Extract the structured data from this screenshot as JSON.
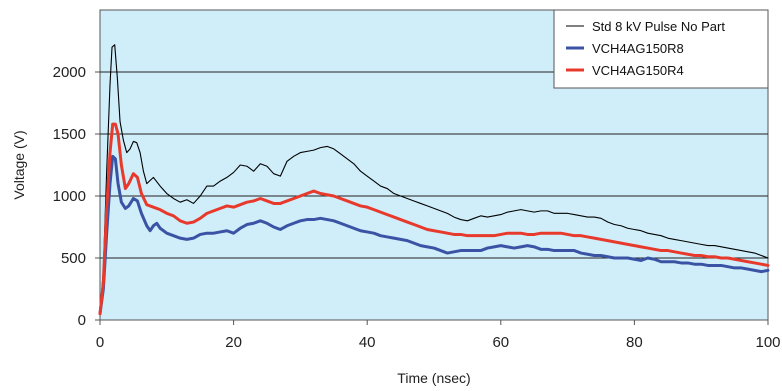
{
  "chart_data": {
    "type": "line",
    "xlabel": "Time (nsec)",
    "ylabel": "Voltage (V)",
    "xlim": [
      0,
      100
    ],
    "ylim": [
      0,
      2500
    ],
    "xticks": [
      0,
      20,
      40,
      60,
      80,
      100
    ],
    "xtick_labels": [
      "0",
      "20",
      "40",
      "60",
      "80",
      "100"
    ],
    "yticks": [
      0,
      500,
      1000,
      1500,
      2000
    ],
    "ytick_labels": [
      "0",
      "500",
      "1000",
      "1500",
      "2000"
    ],
    "grid": "horizontal",
    "plot_background": "#cfeefa",
    "legend_placement": "top-right",
    "series": [
      {
        "name": "Std 8 kV Pulse No Part",
        "color": "#000000",
        "stroke": "thin",
        "points": [
          [
            0,
            50
          ],
          [
            0.5,
            400
          ],
          [
            1,
            1200
          ],
          [
            1.5,
            1900
          ],
          [
            1.8,
            2200
          ],
          [
            2.2,
            2220
          ],
          [
            2.6,
            1950
          ],
          [
            3,
            1600
          ],
          [
            3.5,
            1450
          ],
          [
            4,
            1350
          ],
          [
            4.5,
            1380
          ],
          [
            5,
            1440
          ],
          [
            5.5,
            1430
          ],
          [
            6,
            1350
          ],
          [
            6.5,
            1200
          ],
          [
            7,
            1100
          ],
          [
            8,
            1150
          ],
          [
            9,
            1080
          ],
          [
            10,
            1020
          ],
          [
            11,
            980
          ],
          [
            12,
            950
          ],
          [
            13,
            970
          ],
          [
            14,
            940
          ],
          [
            15,
            1000
          ],
          [
            16,
            1080
          ],
          [
            17,
            1080
          ],
          [
            18,
            1120
          ],
          [
            19,
            1150
          ],
          [
            20,
            1190
          ],
          [
            21,
            1250
          ],
          [
            22,
            1240
          ],
          [
            23,
            1200
          ],
          [
            24,
            1260
          ],
          [
            25,
            1240
          ],
          [
            26,
            1180
          ],
          [
            27,
            1160
          ],
          [
            28,
            1280
          ],
          [
            29,
            1320
          ],
          [
            30,
            1350
          ],
          [
            31,
            1360
          ],
          [
            32,
            1370
          ],
          [
            33,
            1390
          ],
          [
            34,
            1400
          ],
          [
            35,
            1380
          ],
          [
            36,
            1340
          ],
          [
            37,
            1300
          ],
          [
            38,
            1260
          ],
          [
            39,
            1200
          ],
          [
            40,
            1160
          ],
          [
            41,
            1120
          ],
          [
            42,
            1080
          ],
          [
            43,
            1060
          ],
          [
            44,
            1020
          ],
          [
            45,
            1000
          ],
          [
            46,
            980
          ],
          [
            47,
            960
          ],
          [
            48,
            940
          ],
          [
            49,
            920
          ],
          [
            50,
            900
          ],
          [
            51,
            880
          ],
          [
            52,
            860
          ],
          [
            53,
            830
          ],
          [
            54,
            810
          ],
          [
            55,
            800
          ],
          [
            56,
            820
          ],
          [
            57,
            840
          ],
          [
            58,
            830
          ],
          [
            59,
            840
          ],
          [
            60,
            850
          ],
          [
            61,
            870
          ],
          [
            62,
            880
          ],
          [
            63,
            890
          ],
          [
            64,
            880
          ],
          [
            65,
            870
          ],
          [
            66,
            880
          ],
          [
            67,
            880
          ],
          [
            68,
            860
          ],
          [
            69,
            860
          ],
          [
            70,
            860
          ],
          [
            71,
            850
          ],
          [
            72,
            840
          ],
          [
            73,
            830
          ],
          [
            74,
            830
          ],
          [
            75,
            820
          ],
          [
            76,
            790
          ],
          [
            77,
            770
          ],
          [
            78,
            760
          ],
          [
            79,
            740
          ],
          [
            80,
            730
          ],
          [
            81,
            720
          ],
          [
            82,
            700
          ],
          [
            83,
            690
          ],
          [
            84,
            680
          ],
          [
            85,
            660
          ],
          [
            86,
            650
          ],
          [
            87,
            640
          ],
          [
            88,
            630
          ],
          [
            89,
            620
          ],
          [
            90,
            610
          ],
          [
            91,
            600
          ],
          [
            92,
            600
          ],
          [
            93,
            590
          ],
          [
            94,
            580
          ],
          [
            95,
            570
          ],
          [
            96,
            560
          ],
          [
            97,
            550
          ],
          [
            98,
            540
          ],
          [
            99,
            520
          ],
          [
            100,
            500
          ]
        ]
      },
      {
        "name": "VCH4AG150R8",
        "color": "#3b53a4",
        "stroke": "thick",
        "points": [
          [
            0,
            50
          ],
          [
            0.5,
            250
          ],
          [
            1,
            700
          ],
          [
            1.5,
            1100
          ],
          [
            1.9,
            1320
          ],
          [
            2.3,
            1300
          ],
          [
            2.7,
            1100
          ],
          [
            3.2,
            950
          ],
          [
            3.8,
            900
          ],
          [
            4.3,
            920
          ],
          [
            5,
            980
          ],
          [
            5.6,
            960
          ],
          [
            6.2,
            860
          ],
          [
            7,
            760
          ],
          [
            7.5,
            720
          ],
          [
            8,
            760
          ],
          [
            8.5,
            780
          ],
          [
            9,
            740
          ],
          [
            10,
            700
          ],
          [
            11,
            680
          ],
          [
            12,
            660
          ],
          [
            13,
            650
          ],
          [
            14,
            660
          ],
          [
            15,
            690
          ],
          [
            16,
            700
          ],
          [
            17,
            700
          ],
          [
            18,
            710
          ],
          [
            19,
            720
          ],
          [
            20,
            700
          ],
          [
            21,
            740
          ],
          [
            22,
            770
          ],
          [
            23,
            780
          ],
          [
            24,
            800
          ],
          [
            25,
            780
          ],
          [
            26,
            750
          ],
          [
            27,
            730
          ],
          [
            28,
            760
          ],
          [
            29,
            780
          ],
          [
            30,
            800
          ],
          [
            31,
            810
          ],
          [
            32,
            810
          ],
          [
            33,
            820
          ],
          [
            34,
            810
          ],
          [
            35,
            800
          ],
          [
            36,
            780
          ],
          [
            37,
            760
          ],
          [
            38,
            740
          ],
          [
            39,
            720
          ],
          [
            40,
            710
          ],
          [
            41,
            700
          ],
          [
            42,
            680
          ],
          [
            43,
            670
          ],
          [
            44,
            660
          ],
          [
            45,
            650
          ],
          [
            46,
            640
          ],
          [
            47,
            620
          ],
          [
            48,
            600
          ],
          [
            49,
            590
          ],
          [
            50,
            580
          ],
          [
            51,
            560
          ],
          [
            52,
            540
          ],
          [
            53,
            550
          ],
          [
            54,
            560
          ],
          [
            55,
            560
          ],
          [
            56,
            560
          ],
          [
            57,
            560
          ],
          [
            58,
            580
          ],
          [
            59,
            590
          ],
          [
            60,
            600
          ],
          [
            61,
            590
          ],
          [
            62,
            580
          ],
          [
            63,
            590
          ],
          [
            64,
            600
          ],
          [
            65,
            590
          ],
          [
            66,
            570
          ],
          [
            67,
            570
          ],
          [
            68,
            560
          ],
          [
            69,
            560
          ],
          [
            70,
            560
          ],
          [
            71,
            560
          ],
          [
            72,
            540
          ],
          [
            73,
            530
          ],
          [
            74,
            520
          ],
          [
            75,
            520
          ],
          [
            76,
            510
          ],
          [
            77,
            500
          ],
          [
            78,
            500
          ],
          [
            79,
            500
          ],
          [
            80,
            490
          ],
          [
            81,
            480
          ],
          [
            82,
            500
          ],
          [
            83,
            490
          ],
          [
            84,
            470
          ],
          [
            85,
            470
          ],
          [
            86,
            470
          ],
          [
            87,
            460
          ],
          [
            88,
            460
          ],
          [
            89,
            450
          ],
          [
            90,
            450
          ],
          [
            91,
            440
          ],
          [
            92,
            440
          ],
          [
            93,
            440
          ],
          [
            94,
            430
          ],
          [
            95,
            420
          ],
          [
            96,
            420
          ],
          [
            97,
            410
          ],
          [
            98,
            400
          ],
          [
            99,
            390
          ],
          [
            100,
            400
          ]
        ]
      },
      {
        "name": "VCH4AG150R4",
        "color": "#e83a2c",
        "stroke": "thick",
        "points": [
          [
            0,
            50
          ],
          [
            0.5,
            300
          ],
          [
            1,
            900
          ],
          [
            1.5,
            1350
          ],
          [
            1.9,
            1580
          ],
          [
            2.3,
            1580
          ],
          [
            2.7,
            1500
          ],
          [
            3.2,
            1250
          ],
          [
            3.8,
            1060
          ],
          [
            4.3,
            1100
          ],
          [
            5,
            1180
          ],
          [
            5.6,
            1150
          ],
          [
            6.2,
            1020
          ],
          [
            7,
            930
          ],
          [
            8,
            910
          ],
          [
            9,
            890
          ],
          [
            10,
            860
          ],
          [
            11,
            840
          ],
          [
            12,
            800
          ],
          [
            13,
            780
          ],
          [
            14,
            790
          ],
          [
            15,
            820
          ],
          [
            16,
            860
          ],
          [
            17,
            880
          ],
          [
            18,
            900
          ],
          [
            19,
            920
          ],
          [
            20,
            910
          ],
          [
            21,
            930
          ],
          [
            22,
            950
          ],
          [
            23,
            960
          ],
          [
            24,
            980
          ],
          [
            25,
            960
          ],
          [
            26,
            940
          ],
          [
            27,
            940
          ],
          [
            28,
            960
          ],
          [
            29,
            980
          ],
          [
            30,
            1000
          ],
          [
            31,
            1020
          ],
          [
            32,
            1040
          ],
          [
            33,
            1020
          ],
          [
            34,
            1010
          ],
          [
            35,
            1000
          ],
          [
            36,
            980
          ],
          [
            37,
            960
          ],
          [
            38,
            940
          ],
          [
            39,
            920
          ],
          [
            40,
            910
          ],
          [
            41,
            890
          ],
          [
            42,
            870
          ],
          [
            43,
            850
          ],
          [
            44,
            830
          ],
          [
            45,
            810
          ],
          [
            46,
            790
          ],
          [
            47,
            770
          ],
          [
            48,
            750
          ],
          [
            49,
            730
          ],
          [
            50,
            720
          ],
          [
            51,
            710
          ],
          [
            52,
            700
          ],
          [
            53,
            690
          ],
          [
            54,
            690
          ],
          [
            55,
            680
          ],
          [
            56,
            680
          ],
          [
            57,
            680
          ],
          [
            58,
            680
          ],
          [
            59,
            680
          ],
          [
            60,
            690
          ],
          [
            61,
            700
          ],
          [
            62,
            700
          ],
          [
            63,
            700
          ],
          [
            64,
            690
          ],
          [
            65,
            690
          ],
          [
            66,
            700
          ],
          [
            67,
            700
          ],
          [
            68,
            700
          ],
          [
            69,
            700
          ],
          [
            70,
            690
          ],
          [
            71,
            680
          ],
          [
            72,
            680
          ],
          [
            73,
            670
          ],
          [
            74,
            660
          ],
          [
            75,
            650
          ],
          [
            76,
            640
          ],
          [
            77,
            630
          ],
          [
            78,
            620
          ],
          [
            79,
            610
          ],
          [
            80,
            600
          ],
          [
            81,
            590
          ],
          [
            82,
            580
          ],
          [
            83,
            570
          ],
          [
            84,
            560
          ],
          [
            85,
            560
          ],
          [
            86,
            550
          ],
          [
            87,
            540
          ],
          [
            88,
            530
          ],
          [
            89,
            520
          ],
          [
            90,
            520
          ],
          [
            91,
            510
          ],
          [
            92,
            510
          ],
          [
            93,
            500
          ],
          [
            94,
            500
          ],
          [
            95,
            490
          ],
          [
            96,
            480
          ],
          [
            97,
            470
          ],
          [
            98,
            460
          ],
          [
            99,
            450
          ],
          [
            100,
            440
          ]
        ]
      }
    ]
  }
}
